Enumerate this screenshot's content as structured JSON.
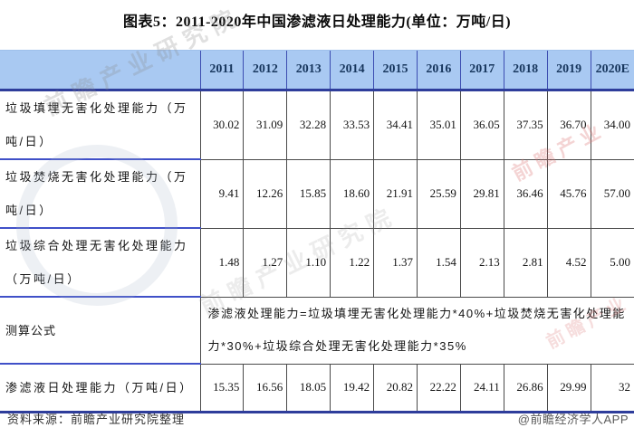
{
  "title": "图表5：2011-2020年中国渗滤液日处理能力(单位：万吨/日)",
  "table": {
    "corner_label": "",
    "years": [
      "2011",
      "2012",
      "2013",
      "2014",
      "2015",
      "2016",
      "2017",
      "2018",
      "2019",
      "2020E"
    ],
    "rows": [
      {
        "label": "垃圾填埋无害化处理能力（万吨/日）",
        "values": [
          "30.02",
          "31.09",
          "32.28",
          "33.53",
          "34.41",
          "35.01",
          "36.05",
          "37.35",
          "36.70",
          "34.00"
        ]
      },
      {
        "label": "垃圾焚烧无害化处理能力（万吨/日）",
        "values": [
          "9.41",
          "12.26",
          "15.85",
          "18.60",
          "21.91",
          "25.59",
          "29.81",
          "36.46",
          "45.76",
          "57.00"
        ]
      },
      {
        "label": "垃圾综合处理无害化处理能力（万吨/日）",
        "values": [
          "1.48",
          "1.27",
          "1.10",
          "1.22",
          "1.37",
          "1.54",
          "2.13",
          "2.81",
          "4.52",
          "5.00"
        ]
      },
      {
        "label": "测算公式",
        "formula": "渗滤液处理能力=垃圾填埋无害化处理能力*40%+垃圾焚烧无害化处理能力*30%+垃圾综合处理无害化处理能力*35%"
      },
      {
        "label": "渗滤液日处理能力（万吨/日）",
        "values": [
          "15.35",
          "16.56",
          "18.05",
          "19.42",
          "20.82",
          "22.22",
          "24.11",
          "26.86",
          "29.99",
          "32"
        ]
      }
    ]
  },
  "footer": {
    "source": "资料来源：前瞻产业研究院整理",
    "credit": "@前瞻经济学人APP"
  },
  "watermarks": {
    "gray1": "前瞻产业研究院",
    "gray2": "前瞻产业研究院",
    "pink1": "前瞻产业",
    "pink2": "前瞻产业"
  },
  "colors": {
    "header_bg": "#a9c9f2",
    "header_border": "#2e3d9b",
    "header_text": "#17365d",
    "label_underline": "#4050c8",
    "grid_line": "#4a4a4a",
    "body_text": "#141414"
  },
  "chart_data": {
    "type": "table",
    "title": "图表5：2011-2020年中国渗滤液日处理能力(单位：万吨/日)",
    "categories": [
      "2011",
      "2012",
      "2013",
      "2014",
      "2015",
      "2016",
      "2017",
      "2018",
      "2019",
      "2020E"
    ],
    "series": [
      {
        "name": "垃圾填埋无害化处理能力（万吨/日）",
        "values": [
          30.02,
          31.09,
          32.28,
          33.53,
          34.41,
          35.01,
          36.05,
          37.35,
          36.7,
          34.0
        ]
      },
      {
        "name": "垃圾焚烧无害化处理能力（万吨/日）",
        "values": [
          9.41,
          12.26,
          15.85,
          18.6,
          21.91,
          25.59,
          29.81,
          36.46,
          45.76,
          57.0
        ]
      },
      {
        "name": "垃圾综合处理无害化处理能力（万吨/日）",
        "values": [
          1.48,
          1.27,
          1.1,
          1.22,
          1.37,
          1.54,
          2.13,
          2.81,
          4.52,
          5.0
        ]
      },
      {
        "name": "渗滤液日处理能力（万吨/日）",
        "values": [
          15.35,
          16.56,
          18.05,
          19.42,
          20.82,
          22.22,
          24.11,
          26.86,
          29.99,
          32
        ]
      }
    ],
    "formula_note": "渗滤液处理能力=垃圾填埋无害化处理能力*40%+垃圾焚烧无害化处理能力*30%+垃圾综合处理无害化处理能力*35%",
    "unit": "万吨/日",
    "source": "资料来源：前瞻产业研究院整理"
  }
}
